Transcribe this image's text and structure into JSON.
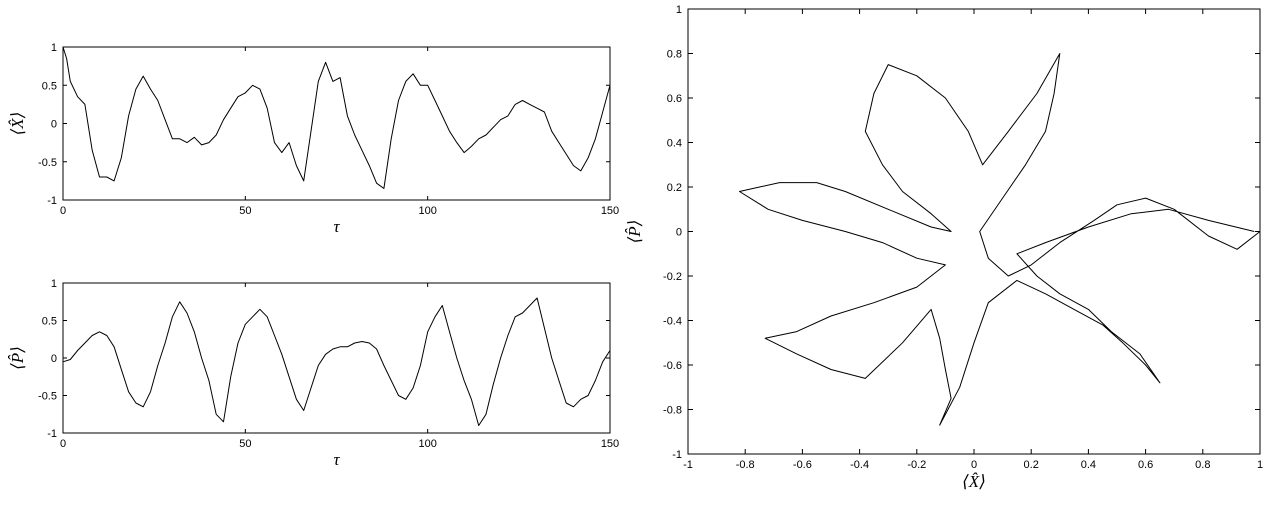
{
  "chart_data": [
    {
      "type": "line",
      "xlabel": "τ",
      "ylabel": "⟨X̂⟩",
      "xlim": [
        0,
        150
      ],
      "ylim": [
        -1,
        1
      ],
      "xticks": [
        "0",
        "50",
        "100",
        "150"
      ],
      "yticks": [
        "1",
        "0.5",
        "0",
        "-0.5",
        "-1"
      ],
      "grid": false,
      "series": [
        {
          "x": [
            0,
            1,
            2,
            4,
            6,
            8,
            10,
            12,
            14,
            16,
            18,
            20,
            22,
            24,
            26,
            28,
            30,
            32,
            34,
            36,
            38,
            40,
            42,
            44,
            46,
            48,
            50,
            52,
            54,
            56,
            58,
            60,
            62,
            64,
            66,
            68,
            70,
            72,
            74,
            76,
            78,
            80,
            82,
            84,
            86,
            88,
            90,
            92,
            94,
            96,
            98,
            100,
            102,
            104,
            106,
            108,
            110,
            112,
            114,
            116,
            118,
            120,
            122,
            124,
            126,
            128,
            130,
            132,
            134,
            136,
            138,
            140,
            142,
            144,
            146,
            148,
            150
          ],
          "y": [
            1.0,
            0.85,
            0.55,
            0.35,
            0.25,
            -0.35,
            -0.7,
            -0.7,
            -0.75,
            -0.45,
            0.1,
            0.45,
            0.62,
            0.45,
            0.3,
            0.05,
            -0.2,
            -0.2,
            -0.25,
            -0.18,
            -0.28,
            -0.25,
            -0.15,
            0.05,
            0.2,
            0.35,
            0.4,
            0.5,
            0.45,
            0.2,
            -0.25,
            -0.38,
            -0.25,
            -0.55,
            -0.75,
            -0.1,
            0.55,
            0.8,
            0.55,
            0.6,
            0.1,
            -0.15,
            -0.35,
            -0.55,
            -0.78,
            -0.85,
            -0.2,
            0.3,
            0.55,
            0.65,
            0.5,
            0.5,
            0.3,
            0.1,
            -0.1,
            -0.25,
            -0.38,
            -0.3,
            -0.2,
            -0.15,
            -0.05,
            0.05,
            0.1,
            0.25,
            0.3,
            0.25,
            0.2,
            0.15,
            -0.1,
            -0.25,
            -0.4,
            -0.55,
            -0.62,
            -0.45,
            -0.2,
            0.15,
            0.5
          ]
        }
      ]
    },
    {
      "type": "line",
      "xlabel": "τ",
      "ylabel": "⟨P̂⟩",
      "xlim": [
        0,
        150
      ],
      "ylim": [
        -1,
        1
      ],
      "xticks": [
        "0",
        "50",
        "100",
        "150"
      ],
      "yticks": [
        "1",
        "0.5",
        "0",
        "-0.5",
        "-1"
      ],
      "grid": false,
      "series": [
        {
          "x": [
            0,
            2,
            4,
            6,
            8,
            10,
            12,
            14,
            16,
            18,
            20,
            22,
            24,
            26,
            28,
            30,
            32,
            34,
            36,
            38,
            40,
            42,
            44,
            46,
            48,
            50,
            52,
            54,
            56,
            58,
            60,
            62,
            64,
            66,
            68,
            70,
            72,
            74,
            76,
            78,
            80,
            82,
            84,
            86,
            88,
            90,
            92,
            94,
            96,
            98,
            100,
            102,
            104,
            106,
            108,
            110,
            112,
            114,
            116,
            118,
            120,
            122,
            124,
            126,
            128,
            130,
            132,
            134,
            136,
            138,
            140,
            142,
            144,
            146,
            148,
            150
          ],
          "y": [
            -0.05,
            -0.02,
            0.1,
            0.2,
            0.3,
            0.35,
            0.3,
            0.15,
            -0.15,
            -0.45,
            -0.6,
            -0.65,
            -0.45,
            -0.1,
            0.2,
            0.55,
            0.75,
            0.6,
            0.35,
            0.0,
            -0.3,
            -0.75,
            -0.85,
            -0.25,
            0.2,
            0.45,
            0.55,
            0.65,
            0.55,
            0.3,
            0.05,
            -0.25,
            -0.55,
            -0.7,
            -0.4,
            -0.1,
            0.05,
            0.12,
            0.15,
            0.15,
            0.2,
            0.22,
            0.2,
            0.12,
            -0.1,
            -0.3,
            -0.5,
            -0.55,
            -0.4,
            -0.1,
            0.35,
            0.55,
            0.7,
            0.35,
            0.0,
            -0.3,
            -0.55,
            -0.9,
            -0.75,
            -0.35,
            0.0,
            0.3,
            0.55,
            0.6,
            0.7,
            0.8,
            0.4,
            0.0,
            -0.3,
            -0.6,
            -0.65,
            -0.55,
            -0.5,
            -0.3,
            -0.05,
            0.1
          ]
        }
      ]
    },
    {
      "type": "line",
      "xlabel": "⟨X̂⟩",
      "ylabel": "⟨P̂⟩",
      "xlim": [
        -1,
        1
      ],
      "ylim": [
        -1,
        1
      ],
      "xticks": [
        "-1",
        "-0.8",
        "-0.6",
        "-0.4",
        "-0.2",
        "0",
        "0.2",
        "0.4",
        "0.6",
        "0.8",
        "1"
      ],
      "yticks": [
        "1",
        "0.8",
        "0.6",
        "0.4",
        "0.2",
        "0",
        "-0.2",
        "-0.4",
        "-0.6",
        "-0.8",
        "-1"
      ],
      "grid": false,
      "series": [
        {
          "x": [
            1.0,
            0.92,
            0.82,
            0.7,
            0.6,
            0.5,
            0.42,
            0.3,
            0.2,
            0.12,
            0.05,
            0.02,
            0.1,
            0.18,
            0.25,
            0.28,
            0.3,
            0.22,
            0.12,
            0.03,
            -0.02,
            -0.1,
            -0.2,
            -0.3,
            -0.35,
            -0.38,
            -0.32,
            -0.25,
            -0.15,
            -0.08,
            -0.15,
            -0.3,
            -0.45,
            -0.55,
            -0.68,
            -0.75,
            -0.82,
            -0.72,
            -0.6,
            -0.45,
            -0.32,
            -0.2,
            -0.1,
            -0.2,
            -0.35,
            -0.5,
            -0.62,
            -0.73,
            -0.62,
            -0.5,
            -0.38,
            -0.25,
            -0.15,
            -0.12,
            -0.1,
            -0.08,
            -0.12,
            -0.05,
            0.0,
            0.05,
            0.15,
            0.25,
            0.35,
            0.45,
            0.52,
            0.6,
            0.65,
            0.58,
            0.48,
            0.4,
            0.3,
            0.22,
            0.15,
            0.25,
            0.4,
            0.55,
            0.68,
            0.82,
            0.98
          ],
          "y": [
            0.0,
            -0.08,
            -0.02,
            0.1,
            0.15,
            0.12,
            0.05,
            -0.05,
            -0.15,
            -0.2,
            -0.12,
            0.0,
            0.15,
            0.3,
            0.45,
            0.62,
            0.8,
            0.62,
            0.45,
            0.3,
            0.45,
            0.6,
            0.7,
            0.75,
            0.62,
            0.45,
            0.3,
            0.18,
            0.08,
            0.0,
            0.02,
            0.1,
            0.18,
            0.22,
            0.22,
            0.2,
            0.18,
            0.1,
            0.05,
            0.0,
            -0.05,
            -0.12,
            -0.15,
            -0.25,
            -0.32,
            -0.38,
            -0.45,
            -0.48,
            -0.55,
            -0.62,
            -0.66,
            -0.5,
            -0.35,
            -0.48,
            -0.62,
            -0.75,
            -0.87,
            -0.7,
            -0.5,
            -0.32,
            -0.22,
            -0.28,
            -0.35,
            -0.42,
            -0.5,
            -0.6,
            -0.68,
            -0.55,
            -0.45,
            -0.35,
            -0.28,
            -0.2,
            -0.1,
            -0.05,
            0.02,
            0.08,
            0.1,
            0.05,
            0.0
          ]
        }
      ]
    }
  ]
}
